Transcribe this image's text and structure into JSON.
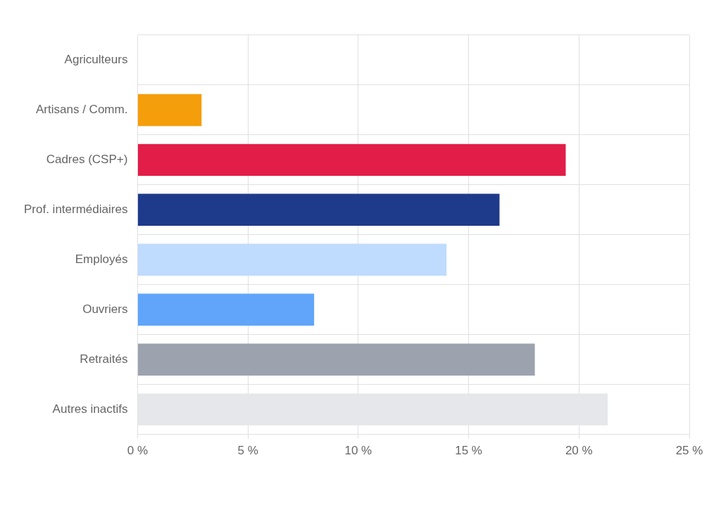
{
  "chart_data": {
    "type": "bar",
    "orientation": "horizontal",
    "categories": [
      "Agriculteurs",
      "Artisans / Comm.",
      "Cadres (CSP+)",
      "Prof. intermédiaires",
      "Employés",
      "Ouvriers",
      "Retraités",
      "Autres inactifs"
    ],
    "values": [
      0,
      2.9,
      19.4,
      16.4,
      14.0,
      8.0,
      18.0,
      21.3
    ],
    "colors": [
      "#f59e0b",
      "#f59e0b",
      "#e11d48",
      "#1e3a8a",
      "#bfdbfe",
      "#60a5fa",
      "#9ca3af",
      "#e5e7eb"
    ],
    "xlim": [
      0,
      25
    ],
    "xticks": [
      {
        "value": 0,
        "label": "0 %"
      },
      {
        "value": 5,
        "label": "5 %"
      },
      {
        "value": 10,
        "label": "10 %"
      },
      {
        "value": 15,
        "label": "15 %"
      },
      {
        "value": 20,
        "label": "20 %"
      },
      {
        "value": 25,
        "label": "25 %"
      }
    ],
    "grid": true
  }
}
